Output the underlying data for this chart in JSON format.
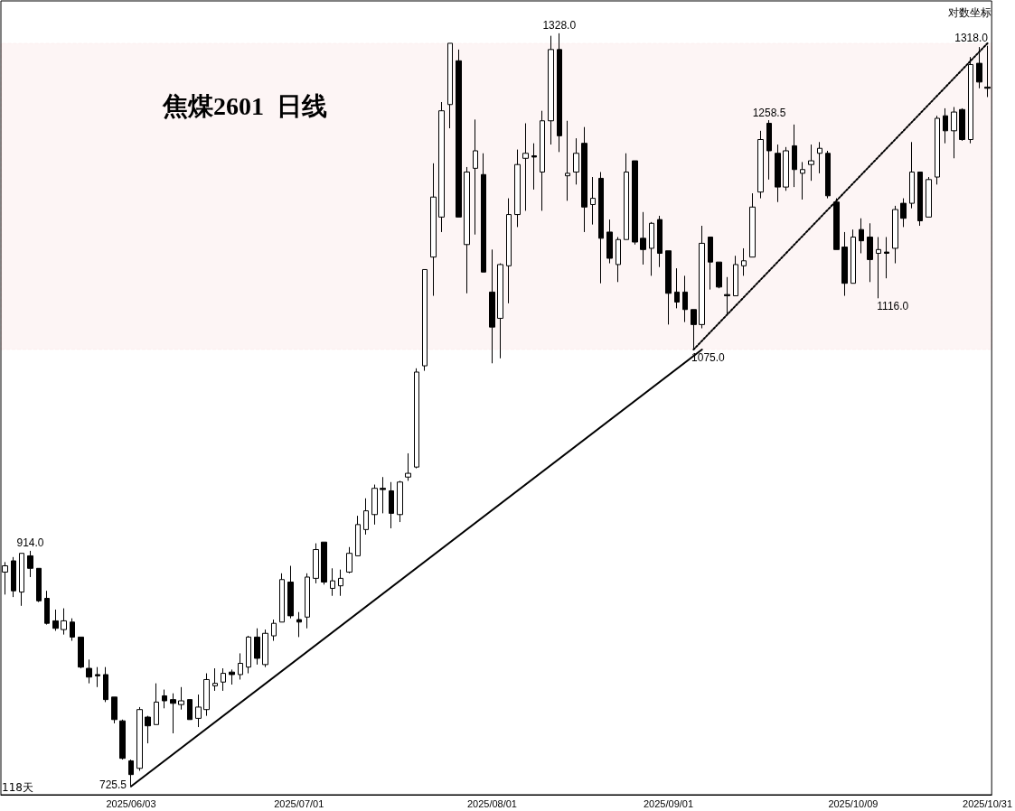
{
  "chart_data": {
    "type": "candlestick",
    "title": "焦煤2601  日线",
    "categories": [
      null,
      null,
      null,
      null,
      null,
      null,
      null,
      null,
      null,
      null,
      null,
      null,
      null,
      null,
      null,
      "2025/06/03",
      null,
      null,
      null,
      null,
      null,
      null,
      null,
      null,
      null,
      null,
      null,
      null,
      null,
      null,
      null,
      null,
      null,
      null,
      null,
      "2025/07/01",
      null,
      null,
      null,
      null,
      null,
      null,
      null,
      null,
      null,
      null,
      null,
      null,
      null,
      null,
      null,
      null,
      null,
      null,
      null,
      null,
      null,
      null,
      "2025/08/01",
      null,
      null,
      null,
      null,
      null,
      null,
      null,
      null,
      null,
      null,
      null,
      null,
      null,
      null,
      null,
      null,
      null,
      null,
      null,
      null,
      "2025/09/01",
      null,
      null,
      null,
      null,
      null,
      null,
      null,
      null,
      null,
      null,
      null,
      null,
      null,
      null,
      null,
      null,
      null,
      null,
      null,
      null,
      null,
      "2025/10/09",
      null,
      null,
      null,
      null,
      null,
      null,
      null,
      null,
      null,
      null,
      null,
      null,
      null,
      null,
      null,
      "2025/10/31"
    ],
    "series": [
      {
        "color": "#000000",
        "value_labels": [
          null,
          null,
          null,
          "914.0",
          null,
          null,
          null,
          null,
          null,
          null,
          null,
          null,
          null,
          null,
          null,
          "725.5",
          null,
          null,
          null,
          null,
          null,
          null,
          null,
          null,
          null,
          null,
          null,
          null,
          null,
          null,
          null,
          null,
          null,
          null,
          null,
          null,
          null,
          null,
          null,
          null,
          null,
          null,
          null,
          null,
          null,
          null,
          null,
          null,
          null,
          null,
          null,
          null,
          null,
          null,
          null,
          null,
          null,
          null,
          null,
          null,
          null,
          null,
          null,
          null,
          null,
          null,
          "1328.0",
          null,
          null,
          null,
          null,
          null,
          null,
          null,
          null,
          null,
          null,
          null,
          null,
          null,
          null,
          null,
          "1075.0",
          null,
          null,
          null,
          null,
          null,
          null,
          null,
          null,
          "1258.5",
          null,
          null,
          null,
          null,
          null,
          null,
          null,
          null,
          null,
          null,
          null,
          null,
          "1116.0",
          null,
          null,
          null,
          null,
          null,
          null,
          null,
          null,
          null,
          null,
          null,
          null,
          "1318.0"
        ],
        "ohlc": [
          [
            897,
            905,
            879,
            902
          ],
          [
            906,
            909,
            877,
            882
          ],
          [
            881,
            912,
            870,
            912
          ],
          [
            910,
            914.0,
            893,
            900
          ],
          [
            900,
            900,
            873,
            874
          ],
          [
            876,
            882,
            855,
            856
          ],
          [
            858,
            867,
            850,
            852
          ],
          [
            851,
            868,
            847,
            858
          ],
          [
            857,
            860,
            842,
            845
          ],
          [
            845,
            845,
            820,
            821
          ],
          [
            820,
            827,
            808,
            813
          ],
          [
            815,
            821,
            805,
            814
          ],
          [
            815,
            821,
            793,
            795
          ],
          [
            797,
            797,
            776,
            779
          ],
          [
            778,
            779,
            747,
            748
          ],
          [
            746,
            747,
            725.5,
            735
          ],
          [
            740,
            789,
            738,
            787
          ],
          [
            781,
            782,
            760,
            774
          ],
          [
            775,
            808,
            775,
            793
          ],
          [
            798,
            803,
            788,
            794
          ],
          [
            795,
            800,
            768,
            792
          ],
          [
            791,
            805,
            787,
            794
          ],
          [
            795,
            795,
            779,
            779
          ],
          [
            780,
            799,
            773,
            789
          ],
          [
            787,
            816,
            782,
            811
          ],
          [
            806,
            820,
            802,
            808
          ],
          [
            809,
            820,
            802,
            816
          ],
          [
            817,
            819,
            807,
            815
          ],
          [
            815,
            832,
            811,
            824
          ],
          [
            821,
            846,
            816,
            845
          ],
          [
            845,
            852,
            823,
            828
          ],
          [
            823,
            851,
            821,
            848
          ],
          [
            846,
            859,
            842,
            856
          ],
          [
            857,
            896,
            857,
            891
          ],
          [
            889,
            902,
            860,
            862
          ],
          [
            859,
            865,
            845,
            857
          ],
          [
            861,
            896,
            852,
            893
          ],
          [
            892,
            920,
            888,
            915
          ],
          [
            921,
            921,
            887,
            889
          ],
          [
            884,
            900,
            878,
            890
          ],
          [
            886,
            899,
            878,
            892
          ],
          [
            897,
            917,
            896,
            912
          ],
          [
            910,
            942,
            910,
            935
          ],
          [
            931,
            956,
            927,
            946
          ],
          [
            943,
            967,
            935,
            964
          ],
          [
            964,
            973,
            944,
            963
          ],
          [
            962,
            969,
            932,
            944
          ],
          [
            943,
            970,
            937,
            969
          ],
          [
            973,
            992,
            970,
            976
          ],
          [
            981,
            1060,
            980,
            1057
          ],
          [
            1062,
            1139,
            1058,
            1139
          ],
          [
            1149,
            1224,
            1118,
            1197
          ],
          [
            1181,
            1273,
            1169,
            1266
          ],
          [
            1271,
            1320,
            1252,
            1320
          ],
          [
            1306,
            1315,
            1181,
            1181
          ],
          [
            1159,
            1221,
            1120,
            1217
          ],
          [
            1220,
            1259,
            1167,
            1234
          ],
          [
            1215,
            1232,
            1137,
            1137
          ],
          [
            1121,
            1155,
            1064,
            1093
          ],
          [
            1100,
            1144,
            1068,
            1143
          ],
          [
            1142,
            1196,
            1112,
            1183
          ],
          [
            1183,
            1235,
            1173,
            1223
          ],
          [
            1228,
            1256,
            1186,
            1232
          ],
          [
            1230,
            1240,
            1203,
            1229
          ],
          [
            1217,
            1266,
            1186,
            1258
          ],
          [
            1258,
            1326,
            1239,
            1315
          ],
          [
            1315,
            1328.0,
            1233,
            1246
          ],
          [
            1214,
            1258,
            1194,
            1216
          ],
          [
            1217,
            1244,
            1207,
            1232
          ],
          [
            1240,
            1253,
            1169,
            1189
          ],
          [
            1191,
            1213,
            1175,
            1196
          ],
          [
            1212,
            1217,
            1128,
            1164
          ],
          [
            1169,
            1179,
            1144,
            1148
          ],
          [
            1143,
            1165,
            1129,
            1163
          ],
          [
            1163,
            1232,
            1163,
            1217
          ],
          [
            1226,
            1226,
            1159,
            1161
          ],
          [
            1164,
            1185,
            1143,
            1155
          ],
          [
            1156,
            1177,
            1134,
            1176
          ],
          [
            1179,
            1182,
            1141,
            1152
          ],
          [
            1154,
            1154,
            1095,
            1120
          ],
          [
            1121,
            1140,
            1108,
            1113
          ],
          [
            1121,
            1134,
            1097,
            1107
          ],
          [
            1107,
            1107,
            1075.0,
            1095
          ],
          [
            1095,
            1174,
            1092,
            1160
          ],
          [
            1165,
            1165,
            1123,
            1145
          ],
          [
            1145,
            1145,
            1124,
            1125
          ],
          [
            1119,
            1133,
            1103,
            1118
          ],
          [
            1118,
            1150,
            1118,
            1143
          ],
          [
            1142,
            1156,
            1134,
            1146
          ],
          [
            1149,
            1200,
            1149,
            1189
          ],
          [
            1201,
            1250,
            1196,
            1243
          ],
          [
            1256,
            1258.5,
            1211,
            1234
          ],
          [
            1232,
            1239,
            1193,
            1205
          ],
          [
            1205,
            1237,
            1202,
            1234
          ],
          [
            1238,
            1255,
            1205,
            1219
          ],
          [
            1216,
            1225,
            1195,
            1219
          ],
          [
            1223,
            1239,
            1210,
            1226
          ],
          [
            1232,
            1241,
            1216,
            1236
          ],
          [
            1232,
            1234,
            1196,
            1198
          ],
          [
            1193,
            1196,
            1155,
            1155
          ],
          [
            1157,
            1169,
            1118,
            1128
          ],
          [
            1128,
            1171,
            1128,
            1165
          ],
          [
            1171,
            1180,
            1152,
            1162
          ],
          [
            1165,
            1176,
            1129,
            1147
          ],
          [
            1152,
            1165,
            1116.0,
            1155
          ],
          [
            1153,
            1165,
            1132,
            1152
          ],
          [
            1156,
            1190,
            1144,
            1187
          ],
          [
            1192,
            1196,
            1173,
            1180
          ],
          [
            1192,
            1241,
            1188,
            1217
          ],
          [
            1217,
            1217,
            1174,
            1178
          ],
          [
            1181,
            1213,
            1181,
            1211
          ],
          [
            1213,
            1262,
            1207,
            1260
          ],
          [
            1262,
            1268,
            1240,
            1250
          ],
          [
            1250,
            1269,
            1228,
            1265
          ],
          [
            1267,
            1268,
            1242,
            1243
          ],
          [
            1243,
            1309,
            1240,
            1303
          ],
          [
            1304,
            1317,
            1284,
            1289
          ],
          [
            1285,
            1318.0,
            1277,
            1284
          ]
        ]
      },
      {
        "type": "line",
        "color": "#000000",
        "line_style": "solid",
        "values": [
          null,
          null,
          null,
          null,
          null,
          null,
          null,
          null,
          null,
          null,
          null,
          null,
          null,
          null,
          null,
          725.5,
          null,
          null,
          null,
          null,
          null,
          null,
          null,
          null,
          null,
          null,
          null,
          null,
          null,
          null,
          null,
          null,
          null,
          null,
          null,
          null,
          null,
          null,
          null,
          null,
          null,
          null,
          null,
          null,
          null,
          null,
          null,
          null,
          null,
          null,
          null,
          null,
          null,
          null,
          null,
          null,
          null,
          null,
          null,
          null,
          null,
          null,
          null,
          null,
          null,
          null,
          null,
          null,
          null,
          null,
          null,
          null,
          null,
          null,
          null,
          null,
          null,
          null,
          null,
          null,
          null,
          null,
          null,
          1075.0,
          null,
          null,
          null,
          null,
          null,
          null,
          null,
          null,
          null,
          null,
          null,
          null,
          null,
          null,
          null,
          null,
          null,
          null,
          null,
          null,
          null,
          null,
          null,
          null,
          null,
          null,
          null,
          null,
          null,
          null,
          null,
          null,
          null,
          null
        ]
      },
      {
        "type": "line",
        "color": "#000000",
        "line_style": "dotted",
        "values": [
          null,
          null,
          null,
          null,
          null,
          null,
          null,
          null,
          null,
          null,
          null,
          null,
          null,
          null,
          null,
          null,
          null,
          null,
          null,
          null,
          null,
          null,
          null,
          null,
          null,
          null,
          null,
          null,
          null,
          null,
          null,
          null,
          null,
          null,
          null,
          null,
          null,
          null,
          null,
          null,
          null,
          null,
          null,
          null,
          null,
          null,
          null,
          null,
          null,
          null,
          null,
          null,
          null,
          null,
          null,
          null,
          null,
          null,
          null,
          null,
          null,
          null,
          null,
          null,
          null,
          null,
          null,
          null,
          null,
          null,
          null,
          null,
          null,
          null,
          null,
          null,
          null,
          null,
          null,
          null,
          null,
          null,
          1075.0,
          null,
          null,
          null,
          null,
          null,
          null,
          null,
          null,
          null,
          null,
          null,
          null,
          null,
          null,
          null,
          null,
          null,
          null,
          null,
          null,
          null,
          null,
          null,
          null,
          null,
          null,
          null,
          null,
          null,
          null,
          null,
          null,
          null,
          null,
          1320
        ]
      }
    ],
    "bands": [
      {
        "axis": "y",
        "from": 1075.0,
        "to": 1320,
        "color": "#cc0000"
      }
    ],
    "annotations": [
      "对数坐标",
      "118天"
    ],
    "log": false,
    "tick_labels": "x",
    "marker": "none"
  }
}
